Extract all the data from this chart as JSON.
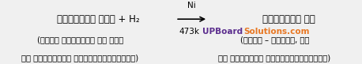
{
  "background_color": "#f0f0f0",
  "left_main": "वनस्पित तेल + H₂",
  "right_main": "वनस्पित घी",
  "arrow_top": "Ni",
  "arrow_bottom": "473k",
  "left_sub1": "(जैसे मूँगफली का तेल",
  "left_sub2": "एक असंतृप्त हाइड्रोकार्बन)",
  "right_sub1": "(जैसे – डालडा, रथ",
  "right_sub2": "एक संतृप्त हाइड्रोकार्बन)",
  "brand_text1": "UPBoard",
  "brand_text2": "Solutions.com",
  "brand_color1": "#5b2d8e",
  "brand_color2": "#e87722",
  "text_color": "#000000",
  "figsize": [
    4.58,
    0.81
  ],
  "dpi": 100
}
